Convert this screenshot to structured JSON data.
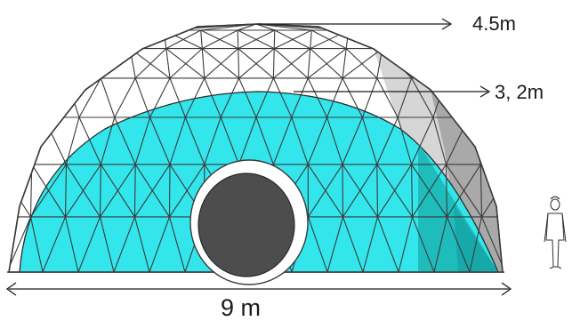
{
  "labels": {
    "top_height": "4.5m",
    "mid_height": "3, 2m",
    "width": "9 m"
  },
  "colors": {
    "dome_fill": "#ffffff",
    "dome_shade": "#d6d6d6",
    "dome_shade_dark": "#a9a9a9",
    "inner_fill": "#33e6ec",
    "inner_shade": "#1fbcbc",
    "lines": "#3a3a3a",
    "door_ring": "#ffffff",
    "door": "#4d4d4d"
  }
}
